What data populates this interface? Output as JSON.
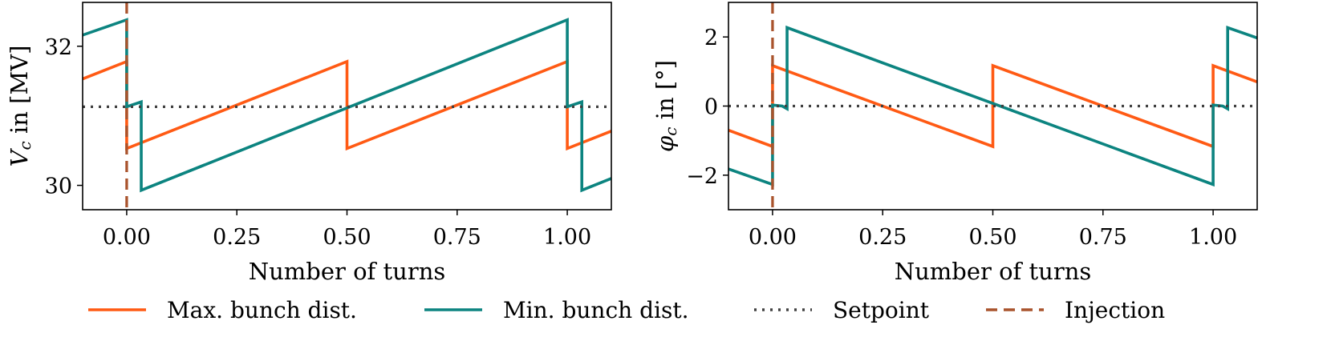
{
  "chart_data": [
    {
      "type": "line",
      "xlabel": "Number of turns",
      "ylabel": "V_c in [MV]",
      "ylabel_parts": {
        "sym": "V",
        "sub": "c",
        "rest": " in [MV]"
      },
      "xlim": [
        -0.1,
        1.1
      ],
      "ylim": [
        29.65,
        32.63
      ],
      "xticks": [
        0.0,
        0.25,
        0.5,
        0.75,
        1.0
      ],
      "xtick_labels": [
        "0.00",
        "0.25",
        "0.50",
        "0.75",
        "1.00"
      ],
      "yticks": [
        30,
        32
      ],
      "ytick_labels": [
        "30",
        "32"
      ],
      "grid": false,
      "series": [
        {
          "name": "Max. bunch dist.",
          "color": "#ff5a14",
          "style": "solid",
          "x": [
            -0.1,
            0.0,
            0.0,
            0.5,
            0.5,
            1.0,
            1.0,
            1.1
          ],
          "y": [
            31.53,
            31.78,
            30.53,
            31.78,
            30.53,
            31.78,
            30.53,
            30.78
          ]
        },
        {
          "name": "Min. bunch dist.",
          "color": "#0c8480",
          "style": "solid",
          "x": [
            -0.1,
            0.0,
            0.0,
            0.033,
            0.033,
            1.0,
            1.0,
            1.033,
            1.033,
            1.1
          ],
          "y": [
            32.16,
            32.38,
            31.13,
            31.2,
            29.93,
            32.38,
            31.13,
            31.2,
            29.93,
            30.1
          ]
        },
        {
          "name": "Setpoint",
          "color": "#404040",
          "style": "dotted",
          "x": [
            -0.1,
            1.1
          ],
          "y": [
            31.13,
            31.13
          ]
        },
        {
          "name": "Injection",
          "color": "#a9532c",
          "style": "dashed",
          "vline_x": 0.0
        }
      ]
    },
    {
      "type": "line",
      "xlabel": "Number of turns",
      "ylabel": "phi_c in [°]",
      "ylabel_parts": {
        "sym": "φ",
        "sub": "c",
        "rest": " in [°]"
      },
      "xlim": [
        -0.1,
        1.1
      ],
      "ylim": [
        -3.0,
        3.0
      ],
      "xticks": [
        0.0,
        0.25,
        0.5,
        0.75,
        1.0
      ],
      "xtick_labels": [
        "0.00",
        "0.25",
        "0.50",
        "0.75",
        "1.00"
      ],
      "yticks": [
        -2,
        0,
        2
      ],
      "ytick_labels": [
        "−2",
        "0",
        "2"
      ],
      "grid": false,
      "series": [
        {
          "name": "Max. bunch dist.",
          "color": "#ff5a14",
          "style": "solid",
          "x": [
            -0.1,
            0.0,
            0.0,
            0.5,
            0.5,
            1.0,
            1.0,
            1.1
          ],
          "y": [
            -0.7,
            -1.17,
            1.17,
            -1.17,
            1.17,
            -1.17,
            1.17,
            0.7
          ]
        },
        {
          "name": "Min. bunch dist.",
          "color": "#0c8480",
          "style": "solid",
          "x": [
            -0.1,
            0.0,
            0.0,
            0.022,
            0.033,
            0.033,
            1.0,
            1.0,
            1.022,
            1.033,
            1.033,
            1.1
          ],
          "y": [
            -1.82,
            -2.27,
            0.03,
            0.0,
            -0.08,
            2.27,
            -2.27,
            0.03,
            0.0,
            -0.08,
            2.27,
            1.97
          ]
        },
        {
          "name": "Setpoint",
          "color": "#404040",
          "style": "dotted",
          "x": [
            -0.1,
            1.1
          ],
          "y": [
            0.0,
            0.0
          ]
        },
        {
          "name": "Injection",
          "color": "#a9532c",
          "style": "dashed",
          "vline_x": 0.0
        }
      ]
    }
  ],
  "legend": {
    "placement": "bottom",
    "entries": [
      {
        "label": "Max. bunch dist.",
        "color": "#ff5a14",
        "style": "solid"
      },
      {
        "label": "Min. bunch dist.",
        "color": "#0c8480",
        "style": "solid"
      },
      {
        "label": "Setpoint",
        "color": "#404040",
        "style": "dotted"
      },
      {
        "label": "Injection",
        "color": "#a9532c",
        "style": "dashed"
      }
    ]
  }
}
